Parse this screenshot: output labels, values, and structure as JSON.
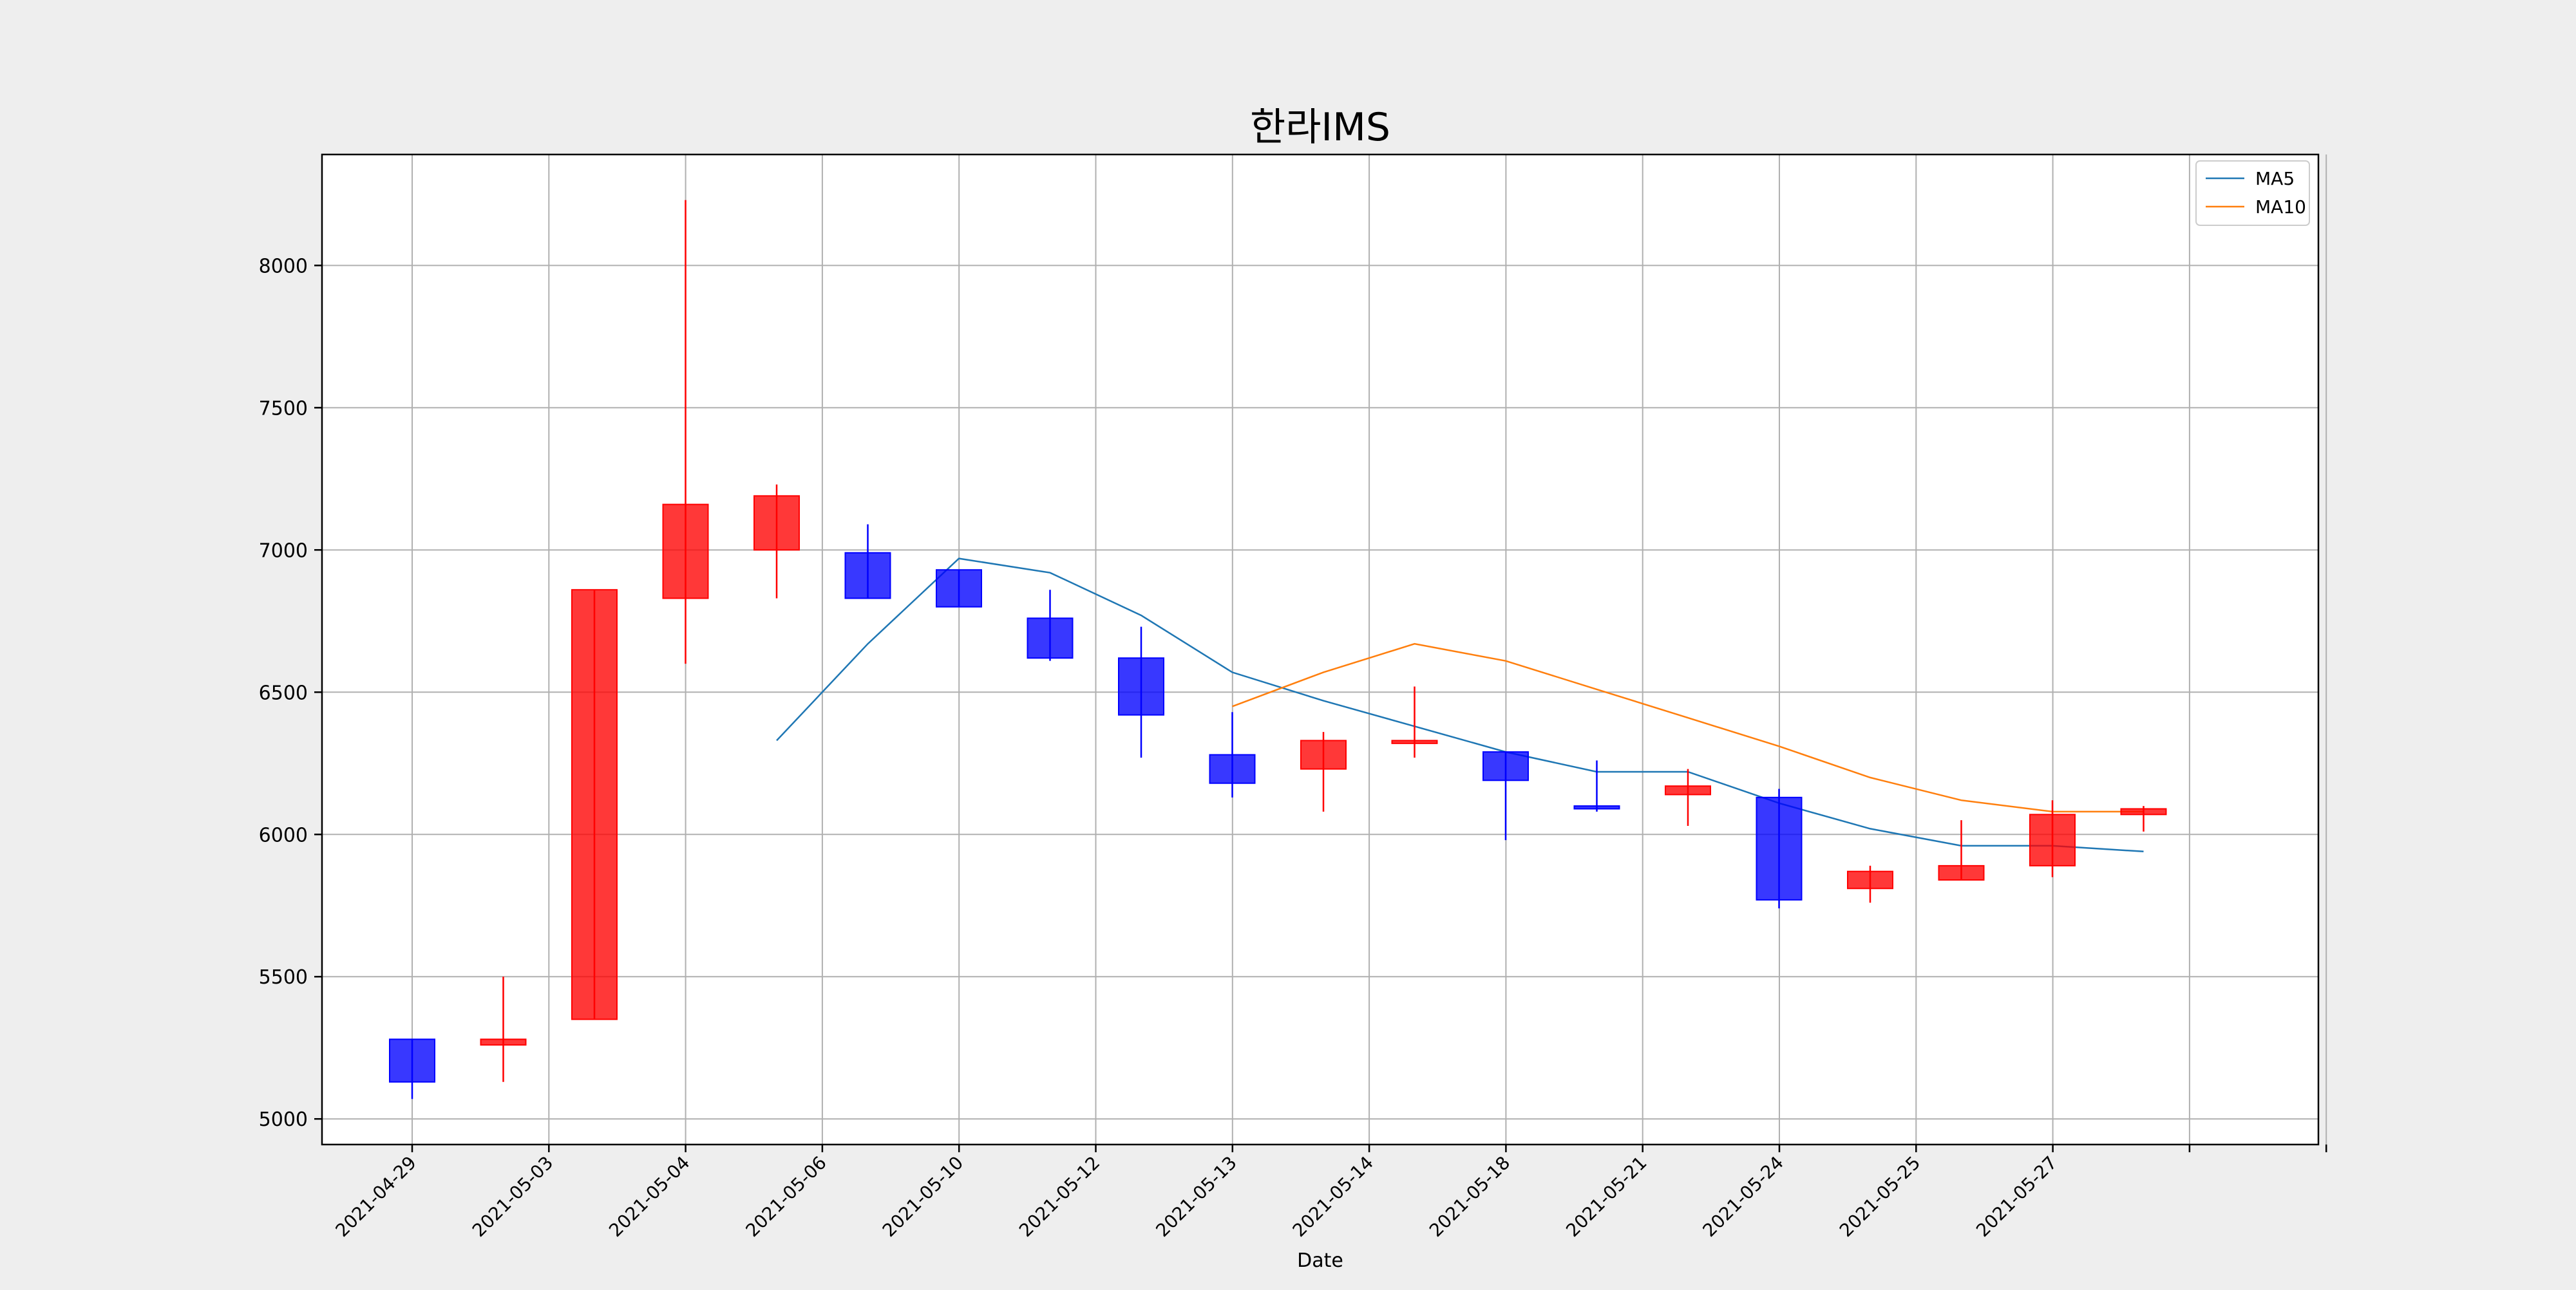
{
  "chart_data": {
    "type": "candlestick",
    "title": "한라IMS",
    "xlabel": "Date",
    "ylabel": "",
    "ylim": [
      4910,
      8390
    ],
    "yticks": [
      5000,
      5500,
      6000,
      6500,
      7000,
      7500,
      8000
    ],
    "xtick_labels": [
      "2021-04-29",
      "2021-05-03",
      "2021-05-04",
      "2021-05-06",
      "2021-05-10",
      "2021-05-12",
      "2021-05-13",
      "2021-05-14",
      "2021-05-18",
      "2021-05-21",
      "2021-05-24",
      "2021-05-25",
      "2021-05-27",
      "",
      ""
    ],
    "grid": true,
    "legend_position": "top-right",
    "colors": {
      "up": "#ff0000",
      "down": "#0000ff",
      "ma5": "#1f77b4",
      "ma10": "#ff7f0e"
    },
    "candles": [
      {
        "open": 5280,
        "high": 5280,
        "low": 5070,
        "close": 5130
      },
      {
        "open": 5260,
        "high": 5500,
        "low": 5130,
        "close": 5280
      },
      {
        "open": 5350,
        "high": 6860,
        "low": 5350,
        "close": 6860
      },
      {
        "open": 6830,
        "high": 8230,
        "low": 6600,
        "close": 7160
      },
      {
        "open": 7000,
        "high": 7230,
        "low": 6830,
        "close": 7190
      },
      {
        "open": 6990,
        "high": 7090,
        "low": 6830,
        "close": 6830
      },
      {
        "open": 6930,
        "high": 6930,
        "low": 6800,
        "close": 6800
      },
      {
        "open": 6760,
        "high": 6860,
        "low": 6610,
        "close": 6620
      },
      {
        "open": 6620,
        "high": 6730,
        "low": 6270,
        "close": 6420
      },
      {
        "open": 6280,
        "high": 6430,
        "low": 6130,
        "close": 6180
      },
      {
        "open": 6230,
        "high": 6360,
        "low": 6080,
        "close": 6330
      },
      {
        "open": 6320,
        "high": 6520,
        "low": 6270,
        "close": 6330
      },
      {
        "open": 6290,
        "high": 6290,
        "low": 5980,
        "close": 6190
      },
      {
        "open": 6100,
        "high": 6260,
        "low": 6080,
        "close": 6090
      },
      {
        "open": 6140,
        "high": 6230,
        "low": 6030,
        "close": 6170
      },
      {
        "open": 6130,
        "high": 6160,
        "low": 5740,
        "close": 5770
      },
      {
        "open": 5810,
        "high": 5890,
        "low": 5760,
        "close": 5870
      },
      {
        "open": 5840,
        "high": 6050,
        "low": 5840,
        "close": 5890
      },
      {
        "open": 5890,
        "high": 6120,
        "low": 5850,
        "close": 6070
      },
      {
        "open": 6070,
        "high": 6100,
        "low": 6010,
        "close": 6090
      }
    ],
    "series": [
      {
        "name": "MA5",
        "start_index": 4,
        "values": [
          6330,
          6670,
          6970,
          6920,
          6770,
          6570,
          6470,
          6380,
          6290,
          6220,
          6220,
          6110,
          6020,
          5960,
          5960,
          5940
        ]
      },
      {
        "name": "MA10",
        "start_index": 9,
        "values": [
          6450,
          6570,
          6670,
          6610,
          6510,
          6410,
          6310,
          6200,
          6120,
          6080,
          6080
        ]
      }
    ]
  }
}
